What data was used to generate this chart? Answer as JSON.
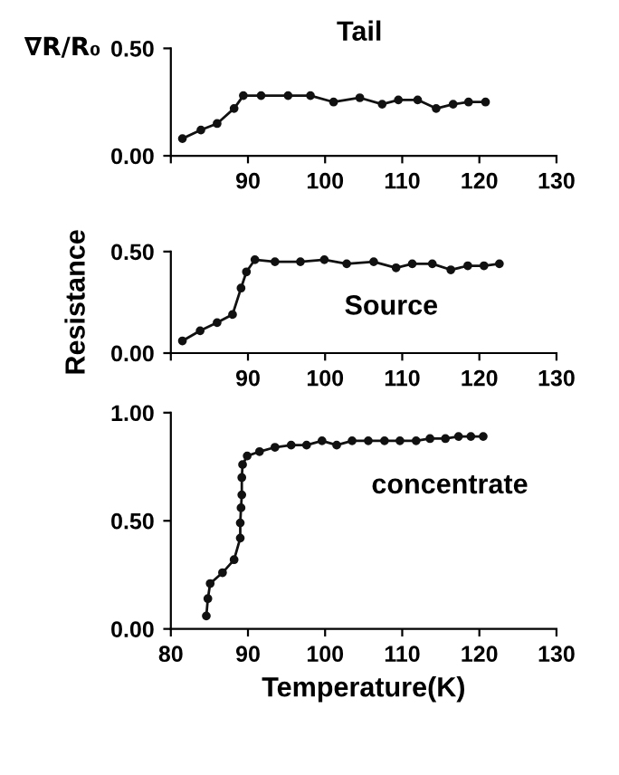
{
  "chart_data": [
    {
      "type": "line",
      "title": "Tail",
      "annotations": [
        "∇R/R₀"
      ],
      "marker": "circle",
      "grid": false,
      "tick_labels": "xy",
      "x": [
        81.5,
        83.9,
        86.0,
        88.2,
        89.4,
        91.7,
        95.2,
        98.1,
        101.1,
        104.5,
        107.4,
        109.5,
        112.0,
        114.4,
        116.6,
        118.6,
        120.8
      ],
      "series": [
        {
          "color": "#111111",
          "values": [
            0.08,
            0.12,
            0.15,
            0.22,
            0.28,
            0.28,
            0.28,
            0.28,
            0.25,
            0.27,
            0.24,
            0.26,
            0.26,
            0.22,
            0.24,
            0.25,
            0.25
          ]
        }
      ],
      "xlim": [
        80,
        130
      ],
      "xticks": [
        {
          "value": 80,
          "label": null
        },
        90,
        100,
        110,
        120,
        130
      ],
      "ylim": [
        0,
        0.5
      ],
      "yticks": [
        {
          "value": 0,
          "label": "0.00"
        },
        {
          "value": 0.5,
          "label": "0.50"
        }
      ]
    },
    {
      "type": "line",
      "title": "Source",
      "ylabel": "Resistance",
      "marker": "circle",
      "grid": false,
      "x": [
        81.5,
        83.8,
        86.0,
        88.0,
        89.1,
        89.8,
        90.9,
        93.5,
        96.8,
        99.9,
        102.8,
        106.3,
        109.2,
        111.3,
        113.9,
        116.3,
        118.5,
        120.6,
        122.6
      ],
      "series": [
        {
          "color": "#111111",
          "values": [
            0.06,
            0.11,
            0.15,
            0.19,
            0.32,
            0.4,
            0.46,
            0.45,
            0.45,
            0.46,
            0.44,
            0.45,
            0.42,
            0.44,
            0.44,
            0.41,
            0.43,
            0.43,
            0.44
          ]
        }
      ],
      "xlim": [
        80,
        130
      ],
      "xticks": [
        {
          "value": 80,
          "label": null
        },
        90,
        100,
        110,
        120,
        130
      ],
      "ylim": [
        0,
        0.5
      ],
      "yticks": [
        {
          "value": 0,
          "label": "0.00"
        },
        {
          "value": 0.5,
          "label": "0.50"
        }
      ]
    },
    {
      "type": "line",
      "title": "concentrate",
      "xlabel": "Temperature(K)",
      "marker": "circle",
      "grid": false,
      "x": [
        84.6,
        84.8,
        85.1,
        86.7,
        88.2,
        89.0,
        89.0,
        89.1,
        89.2,
        89.2,
        89.3,
        89.9,
        91.5,
        93.5,
        95.6,
        97.6,
        99.6,
        101.5,
        103.5,
        105.6,
        107.7,
        109.7,
        111.8,
        113.6,
        115.6,
        117.3,
        118.9,
        120.5
      ],
      "series": [
        {
          "color": "#111111",
          "values": [
            0.06,
            0.14,
            0.21,
            0.26,
            0.32,
            0.42,
            0.49,
            0.56,
            0.62,
            0.7,
            0.76,
            0.8,
            0.82,
            0.84,
            0.85,
            0.85,
            0.87,
            0.85,
            0.87,
            0.87,
            0.87,
            0.87,
            0.87,
            0.88,
            0.88,
            0.89,
            0.89,
            0.89
          ]
        }
      ],
      "xlim": [
        80,
        130
      ],
      "xticks": [
        80,
        90,
        100,
        110,
        120,
        130
      ],
      "ylim": [
        0,
        1.0
      ],
      "yticks": [
        {
          "value": 0,
          "label": "0.00"
        },
        {
          "value": 0.5,
          "label": "0.50"
        },
        {
          "value": 1.0,
          "label": "1.00"
        }
      ]
    }
  ]
}
